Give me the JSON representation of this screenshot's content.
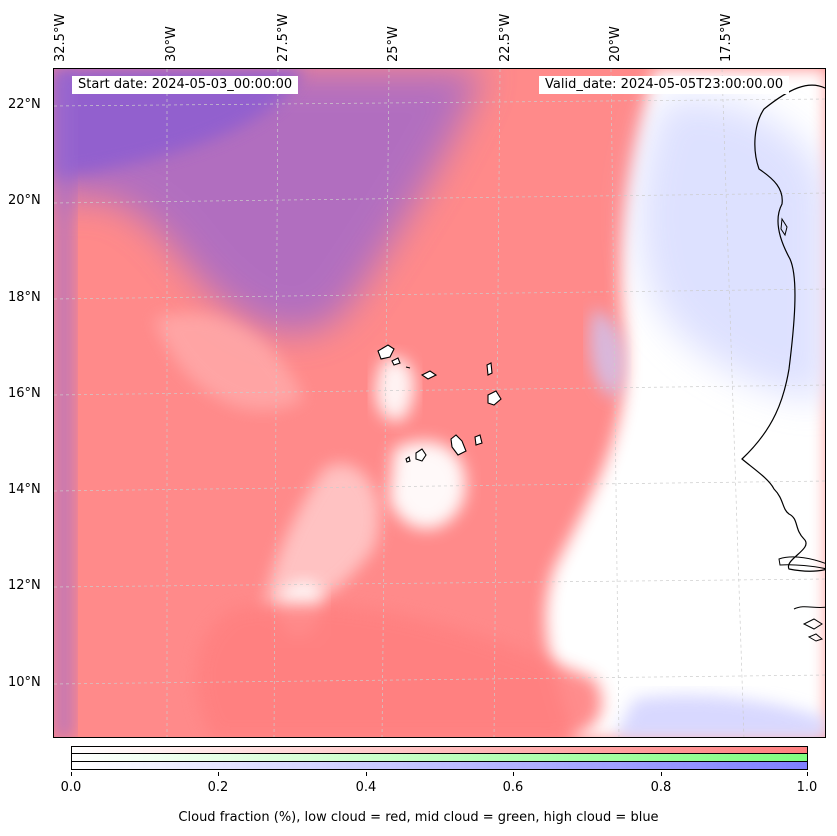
{
  "map": {
    "start_date": "Start date: 2024-05-03_00:00:00",
    "valid_date": "Valid_date: 2024-05-05T23:00:00.00",
    "lon_labels": [
      "32.5°W",
      "30°W",
      "27.5°W",
      "25°W",
      "22.5°W",
      "20°W",
      "17.5°W"
    ],
    "lat_labels": [
      "22°N",
      "20°N",
      "18°N",
      "16°N",
      "14°N",
      "12°N",
      "10°N"
    ]
  },
  "colorbar": {
    "ticks": [
      "0.0",
      "0.2",
      "0.4",
      "0.6",
      "0.8",
      "1.0"
    ],
    "title": "Cloud fraction (%), low cloud = red, mid cloud = green, high cloud = blue",
    "colors": {
      "low": "#ff7f7f",
      "mid": "#7fff7f",
      "high": "#7f7fff"
    }
  }
}
